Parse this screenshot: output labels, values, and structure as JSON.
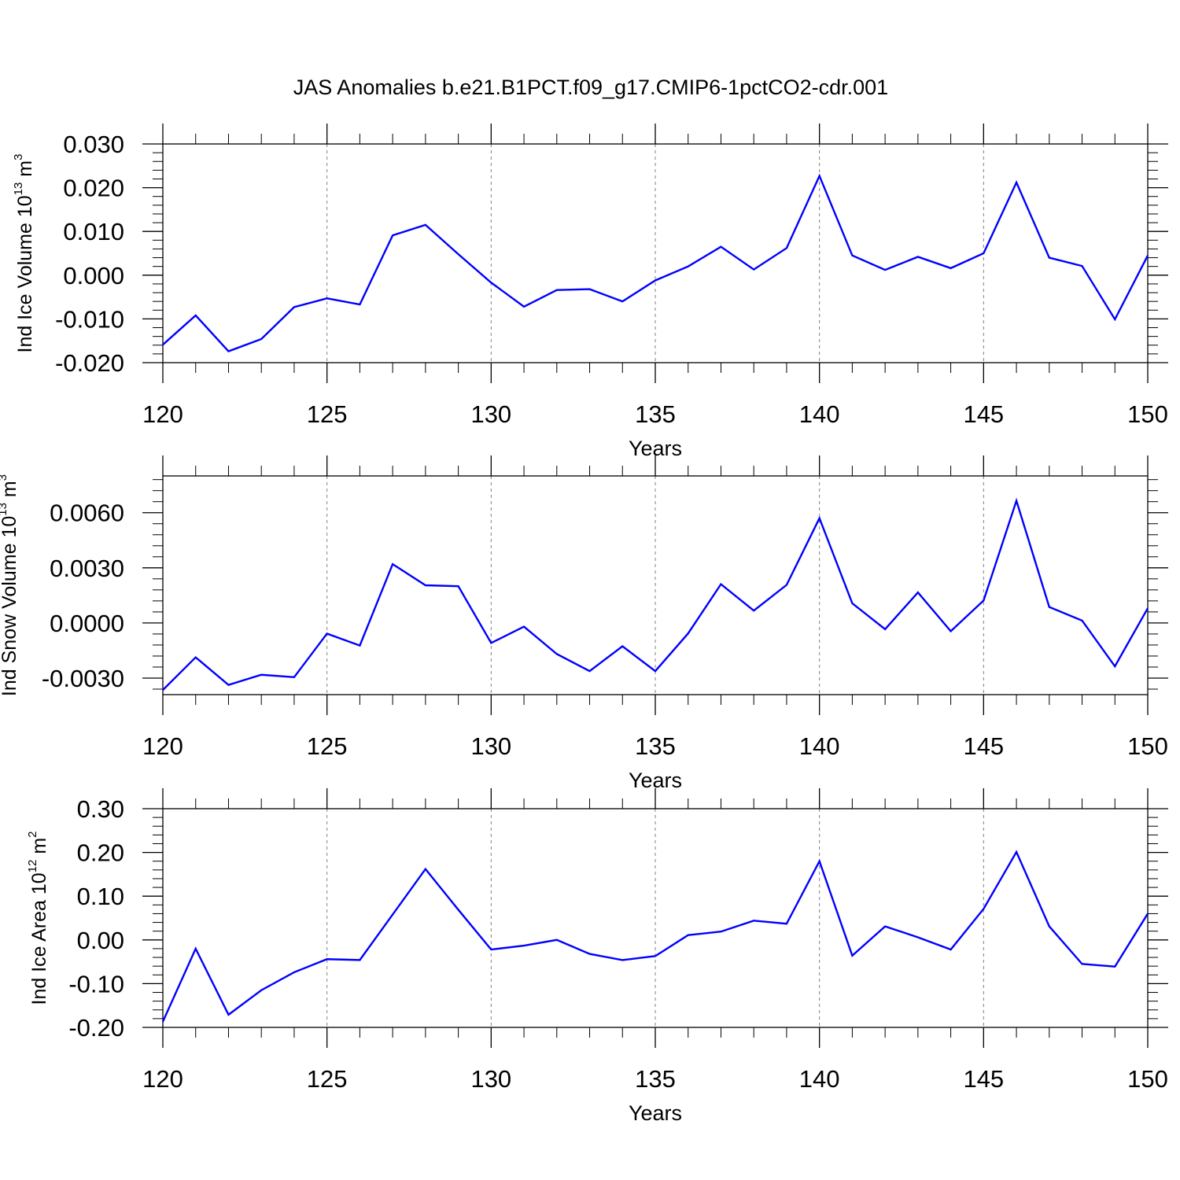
{
  "title": "JAS Anomalies b.e21.B1PCT.f09_g17.CMIP6-1pctCO2-cdr.001",
  "chart_data": [
    {
      "type": "line",
      "ylabel": {
        "prefix": "Ind Ice Volume 10",
        "exp": "13",
        "unit": " m",
        "unit_exp": "3"
      },
      "xlabel": "Years",
      "xlim": [
        120,
        150
      ],
      "ylim": [
        -0.02,
        0.03
      ],
      "yticks": [
        -0.02,
        -0.01,
        0.0,
        0.01,
        0.02,
        0.03
      ],
      "ytick_labels": [
        "-0.020",
        "-0.010",
        "0.000",
        "0.010",
        "0.020",
        "0.030"
      ],
      "xticks": [
        120,
        125,
        130,
        135,
        140,
        145,
        150
      ],
      "xtick_labels": [
        "120",
        "125",
        "130",
        "135",
        "140",
        "145",
        "150"
      ],
      "line_color": "#0000ff",
      "series": [
        {
          "x": [
            120,
            121,
            122,
            123,
            124,
            125,
            126,
            127,
            128,
            129,
            130,
            131,
            132,
            133,
            134,
            135,
            136,
            137,
            138,
            139,
            140,
            141,
            142,
            143,
            144,
            145,
            146,
            147,
            148,
            149,
            150
          ],
          "values": [
            -0.0159,
            -0.0092,
            -0.0174,
            -0.0146,
            -0.0073,
            -0.0053,
            -0.0067,
            0.0091,
            0.0115,
            0.0048,
            -0.0017,
            -0.0072,
            -0.0034,
            -0.0032,
            -0.006,
            -0.0012,
            0.002,
            0.0065,
            0.0013,
            0.0062,
            0.0227,
            0.0045,
            0.0012,
            0.0042,
            0.0016,
            0.005,
            0.0212,
            0.004,
            0.0021,
            -0.0101,
            0.0045
          ]
        }
      ]
    },
    {
      "type": "line",
      "ylabel": {
        "prefix": "Ind Snow Volume 10",
        "exp": "13",
        "unit": " m",
        "unit_exp": "3"
      },
      "xlabel": "Years",
      "xlim": [
        120,
        150
      ],
      "ylim": [
        -0.0039,
        0.008
      ],
      "yticks": [
        -0.003,
        0.0,
        0.003,
        0.006
      ],
      "ytick_labels": [
        "-0.0030",
        "0.0000",
        "0.0030",
        "0.0060"
      ],
      "xticks": [
        120,
        125,
        130,
        135,
        140,
        145,
        150
      ],
      "xtick_labels": [
        "120",
        "125",
        "130",
        "135",
        "140",
        "145",
        "150"
      ],
      "line_color": "#0000ff",
      "series": [
        {
          "x": [
            120,
            121,
            122,
            123,
            124,
            125,
            126,
            127,
            128,
            129,
            130,
            131,
            132,
            133,
            134,
            135,
            136,
            137,
            138,
            139,
            140,
            141,
            142,
            143,
            144,
            145,
            146,
            147,
            148,
            149,
            150
          ],
          "values": [
            -0.00365,
            -0.00187,
            -0.00337,
            -0.00282,
            -0.00295,
            -0.00058,
            -0.00123,
            0.0032,
            0.00205,
            0.002,
            -0.00109,
            -0.0002,
            -0.00169,
            -0.00262,
            -0.00127,
            -0.00262,
            -0.00057,
            0.00211,
            0.00067,
            0.00207,
            0.0057,
            0.00107,
            -0.00034,
            0.00166,
            -0.00045,
            0.00122,
            0.00665,
            0.00087,
            0.00013,
            -0.00236,
            0.0008
          ]
        }
      ]
    },
    {
      "type": "line",
      "ylabel": {
        "prefix": "Ind Ice Area 10",
        "exp": "12",
        "unit": " m",
        "unit_exp": "2"
      },
      "xlabel": "Years",
      "xlim": [
        120,
        150
      ],
      "ylim": [
        -0.2,
        0.3
      ],
      "yticks": [
        -0.2,
        -0.1,
        0.0,
        0.1,
        0.2,
        0.3
      ],
      "ytick_labels": [
        "-0.20",
        "-0.10",
        "0.00",
        "0.10",
        "0.20",
        "0.30"
      ],
      "xticks": [
        120,
        125,
        130,
        135,
        140,
        145,
        150
      ],
      "xtick_labels": [
        "120",
        "125",
        "130",
        "135",
        "140",
        "145",
        "150"
      ],
      "line_color": "#0000ff",
      "series": [
        {
          "x": [
            120,
            121,
            122,
            123,
            124,
            125,
            126,
            127,
            128,
            129,
            130,
            131,
            132,
            133,
            134,
            135,
            136,
            137,
            138,
            139,
            140,
            141,
            142,
            143,
            144,
            145,
            146,
            147,
            148,
            149,
            150
          ],
          "values": [
            -0.187,
            -0.02,
            -0.171,
            -0.115,
            -0.074,
            -0.044,
            -0.046,
            0.058,
            0.162,
            0.069,
            -0.022,
            -0.013,
            0.0,
            -0.032,
            -0.046,
            -0.037,
            0.011,
            0.019,
            0.044,
            0.037,
            0.18,
            -0.036,
            0.031,
            0.006,
            -0.022,
            0.071,
            0.201,
            0.031,
            -0.055,
            -0.061,
            0.06
          ]
        }
      ]
    }
  ]
}
